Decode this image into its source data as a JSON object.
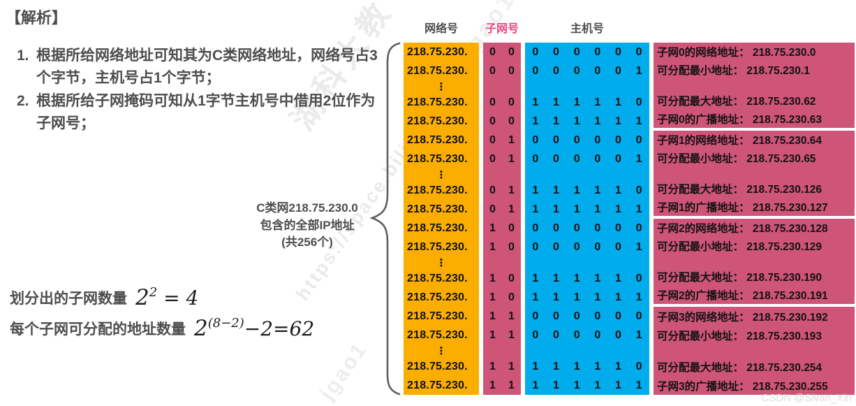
{
  "analysis": {
    "title": "【解析】",
    "items": [
      {
        "num": "1.",
        "text": "根据所给网络地址可知其为C类网络地址，网络号占3个字节，主机号占1个字节；"
      },
      {
        "num": "2.",
        "text": "根据所给子网掩码可知从1字节主机号中借用2位作为子网号；"
      }
    ]
  },
  "brace_label": {
    "line1": "C类网218.75.230.0",
    "line2": "包含的全部IP地址",
    "line3": "(共256个)"
  },
  "formulas": [
    {
      "label": "划分出的子网数量",
      "base": "2",
      "sup": "2",
      "tail": " = 4"
    },
    {
      "label": "每个子网可分配的地址数量",
      "base": "2",
      "sup": "(8−2)",
      "tail": "−2=62"
    }
  ],
  "table": {
    "headers": {
      "network": "网络号",
      "subnet": "子网号",
      "host": "主机号"
    },
    "network_prefix": "218.75.230.",
    "ellipsis": "⋮",
    "groups": [
      {
        "rows": [
          {
            "subnet_bits": [
              "0",
              "0"
            ],
            "host_bits": [
              "0",
              "0",
              "0",
              "0",
              "0",
              "0"
            ],
            "desc": "子网0的网络地址： 218.75.230.0"
          },
          {
            "subnet_bits": [
              "0",
              "0"
            ],
            "host_bits": [
              "0",
              "0",
              "0",
              "0",
              "0",
              "1"
            ],
            "desc": "可分配最小地址： 218.75.230.1"
          },
          {
            "subnet_bits": [
              "0",
              "0"
            ],
            "host_bits": [
              "1",
              "1",
              "1",
              "1",
              "1",
              "0"
            ],
            "desc": "可分配最大地址： 218.75.230.62"
          },
          {
            "subnet_bits": [
              "0",
              "0"
            ],
            "host_bits": [
              "1",
              "1",
              "1",
              "1",
              "1",
              "1"
            ],
            "desc": "子网0的广播地址： 218.75.230.63"
          }
        ]
      },
      {
        "rows": [
          {
            "subnet_bits": [
              "0",
              "1"
            ],
            "host_bits": [
              "0",
              "0",
              "0",
              "0",
              "0",
              "0"
            ],
            "desc": "子网1的网络地址： 218.75.230.64"
          },
          {
            "subnet_bits": [
              "0",
              "1"
            ],
            "host_bits": [
              "0",
              "0",
              "0",
              "0",
              "0",
              "1"
            ],
            "desc": "可分配最小地址： 218.75.230.65"
          },
          {
            "subnet_bits": [
              "0",
              "1"
            ],
            "host_bits": [
              "1",
              "1",
              "1",
              "1",
              "1",
              "0"
            ],
            "desc": "可分配最大地址： 218.75.230.126"
          },
          {
            "subnet_bits": [
              "0",
              "1"
            ],
            "host_bits": [
              "1",
              "1",
              "1",
              "1",
              "1",
              "1"
            ],
            "desc": "子网1的广播地址： 218.75.230.127"
          }
        ]
      },
      {
        "rows": [
          {
            "subnet_bits": [
              "1",
              "0"
            ],
            "host_bits": [
              "0",
              "0",
              "0",
              "0",
              "0",
              "0"
            ],
            "desc": "子网2的网络地址： 218.75.230.128"
          },
          {
            "subnet_bits": [
              "1",
              "0"
            ],
            "host_bits": [
              "0",
              "0",
              "0",
              "0",
              "0",
              "1"
            ],
            "desc": "可分配最小地址： 218.75.230.129"
          },
          {
            "subnet_bits": [
              "1",
              "0"
            ],
            "host_bits": [
              "1",
              "1",
              "1",
              "1",
              "1",
              "0"
            ],
            "desc": "可分配最大地址： 218.75.230.190"
          },
          {
            "subnet_bits": [
              "1",
              "0"
            ],
            "host_bits": [
              "1",
              "1",
              "1",
              "1",
              "1",
              "1"
            ],
            "desc": "子网2的广播地址： 218.75.230.191"
          }
        ]
      },
      {
        "rows": [
          {
            "subnet_bits": [
              "1",
              "1"
            ],
            "host_bits": [
              "0",
              "0",
              "0",
              "0",
              "0",
              "0"
            ],
            "desc": "子网3的网络地址： 218.75.230.192"
          },
          {
            "subnet_bits": [
              "1",
              "1"
            ],
            "host_bits": [
              "0",
              "0",
              "0",
              "0",
              "0",
              "1"
            ],
            "desc": "可分配最小地址： 218.75.230.193"
          },
          {
            "subnet_bits": [
              "1",
              "1"
            ],
            "host_bits": [
              "1",
              "1",
              "1",
              "1",
              "1",
              "0"
            ],
            "desc": "可分配最大地址： 218.75.230.254"
          },
          {
            "subnet_bits": [
              "1",
              "1"
            ],
            "host_bits": [
              "1",
              "1",
              "1",
              "1",
              "1",
              "1"
            ],
            "desc": "子网3的广播地址： 218.75.230.255"
          }
        ]
      }
    ]
  },
  "watermarks": {
    "diag1": "湖科大教",
    "diag2": "https://space.bilibili",
    "diag3": "jgao1996",
    "diag4": "jgao1",
    "csdn": "CSDN @Sivan_Xin"
  },
  "colors": {
    "orange": "#fbad00",
    "rose": "#ce5577",
    "blue": "#00acec",
    "header_pink": "#e8437f",
    "text_gray": "#4d4d4d"
  }
}
